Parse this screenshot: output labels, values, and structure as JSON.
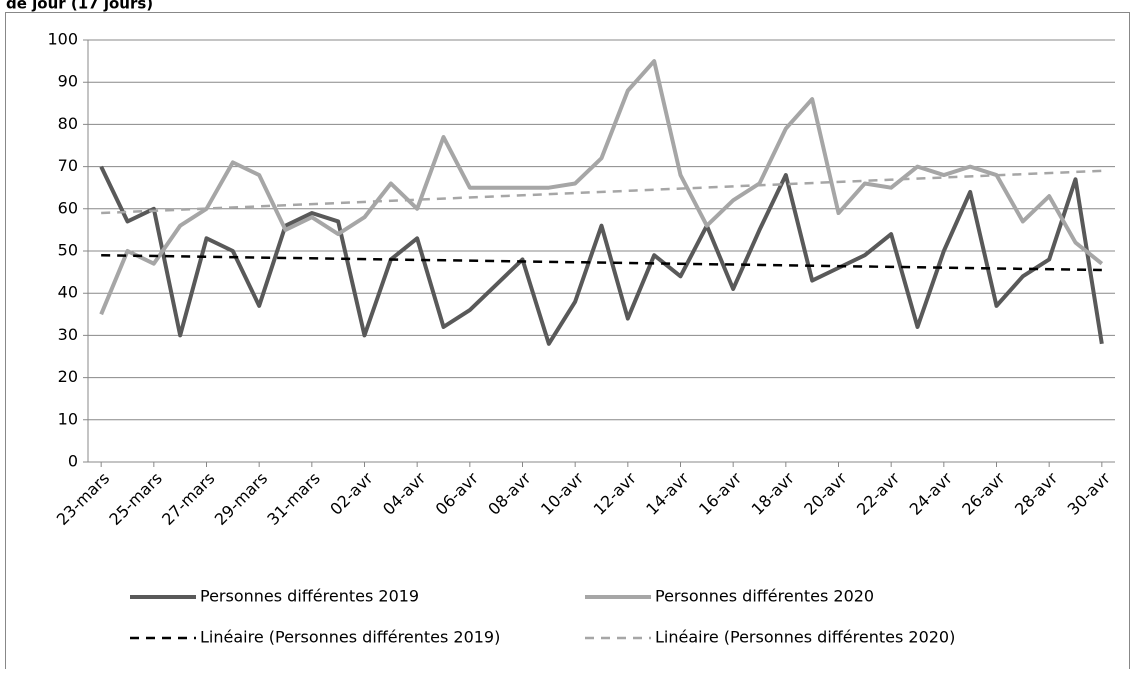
{
  "chart_data": {
    "type": "line",
    "title": "de jour (17 jours)",
    "categories": [
      "23-mars",
      null,
      "25-mars",
      null,
      "27-mars",
      null,
      "29-mars",
      null,
      "31-mars",
      null,
      "02-avr",
      null,
      "04-avr",
      null,
      "06-avr",
      null,
      "08-avr",
      null,
      "10-avr",
      null,
      "12-avr",
      null,
      "14-avr",
      null,
      "16-avr",
      null,
      "18-avr",
      null,
      "20-avr",
      null,
      "22-avr",
      null,
      "24-avr",
      null,
      "26-avr",
      null,
      "28-avr",
      null,
      "30-avr"
    ],
    "series": [
      {
        "name": "Personnes différentes 2019",
        "color": "#595959",
        "values": [
          70,
          57,
          60,
          30,
          53,
          50,
          37,
          56,
          59,
          57,
          30,
          48,
          53,
          32,
          36,
          42,
          48,
          28,
          38,
          56,
          34,
          49,
          44,
          56,
          41,
          55,
          68,
          43,
          46,
          49,
          54,
          32,
          50,
          64,
          37,
          44,
          48,
          67,
          28
        ]
      },
      {
        "name": "Personnes différentes 2020",
        "color": "#a6a6a6",
        "values": [
          35,
          50,
          47,
          56,
          60,
          71,
          68,
          55,
          58,
          54,
          58,
          66,
          60,
          77,
          65,
          65,
          65,
          65,
          66,
          72,
          88,
          95,
          68,
          56,
          62,
          66,
          79,
          86,
          59,
          66,
          65,
          70,
          68,
          70,
          68,
          57,
          63,
          52,
          47
        ]
      }
    ],
    "trendlines": [
      {
        "name": "Linéaire (Personnes différentes 2019)",
        "color": "#000000",
        "start": 49,
        "end": 45.5
      },
      {
        "name": "Linéaire (Personnes différentes 2020)",
        "color": "#a6a6a6",
        "start": 59,
        "end": 69
      }
    ],
    "ylim": [
      0,
      100
    ],
    "yticks": [
      0,
      10,
      20,
      30,
      40,
      50,
      60,
      70,
      80,
      90,
      100
    ],
    "grid": true
  }
}
